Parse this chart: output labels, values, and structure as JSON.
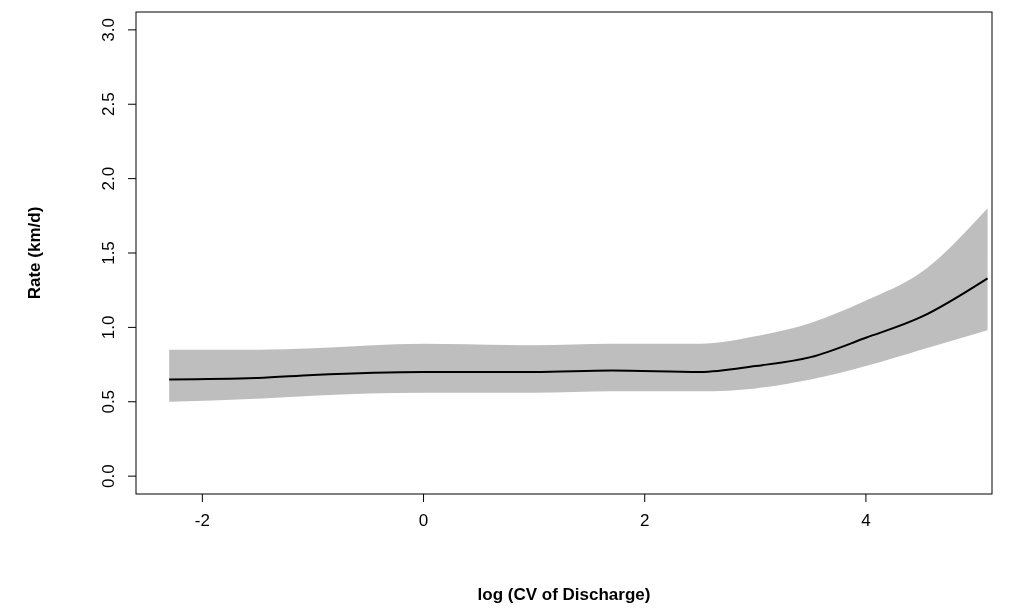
{
  "chart_data": {
    "type": "line",
    "xlabel": "log (CV of Discharge)",
    "ylabel": "Rate (km/d)",
    "xlim": [
      -2.6,
      5.14
    ],
    "ylim": [
      -0.12,
      3.12
    ],
    "xticks": [
      -2,
      0,
      2,
      4
    ],
    "yticks": [
      {
        "value": 0,
        "label": "0.0"
      },
      {
        "value": 0.5,
        "label": "0.5"
      },
      {
        "value": 1,
        "label": "1.0"
      },
      {
        "value": 1.5,
        "label": "1.5"
      },
      {
        "value": 2,
        "label": "2.0"
      },
      {
        "value": 2.5,
        "label": "2.5"
      },
      {
        "value": 3,
        "label": "3.0"
      }
    ],
    "grid": false,
    "x": [
      -2.3,
      -1.5,
      -1,
      0,
      1,
      1.7,
      2.5,
      3,
      3.5,
      4,
      4.5,
      5.1
    ],
    "series": [
      {
        "color": "#000000",
        "values": [
          0.65,
          0.66,
          0.68,
          0.7,
          0.7,
          0.71,
          0.7,
          0.74,
          0.8,
          0.93,
          1.07,
          1.33
        ],
        "lower": [
          0.5,
          0.52,
          0.54,
          0.56,
          0.56,
          0.57,
          0.57,
          0.59,
          0.65,
          0.74,
          0.85,
          0.98
        ],
        "upper": [
          0.85,
          0.85,
          0.86,
          0.89,
          0.88,
          0.89,
          0.89,
          0.94,
          1.03,
          1.18,
          1.37,
          1.8
        ]
      }
    ]
  }
}
